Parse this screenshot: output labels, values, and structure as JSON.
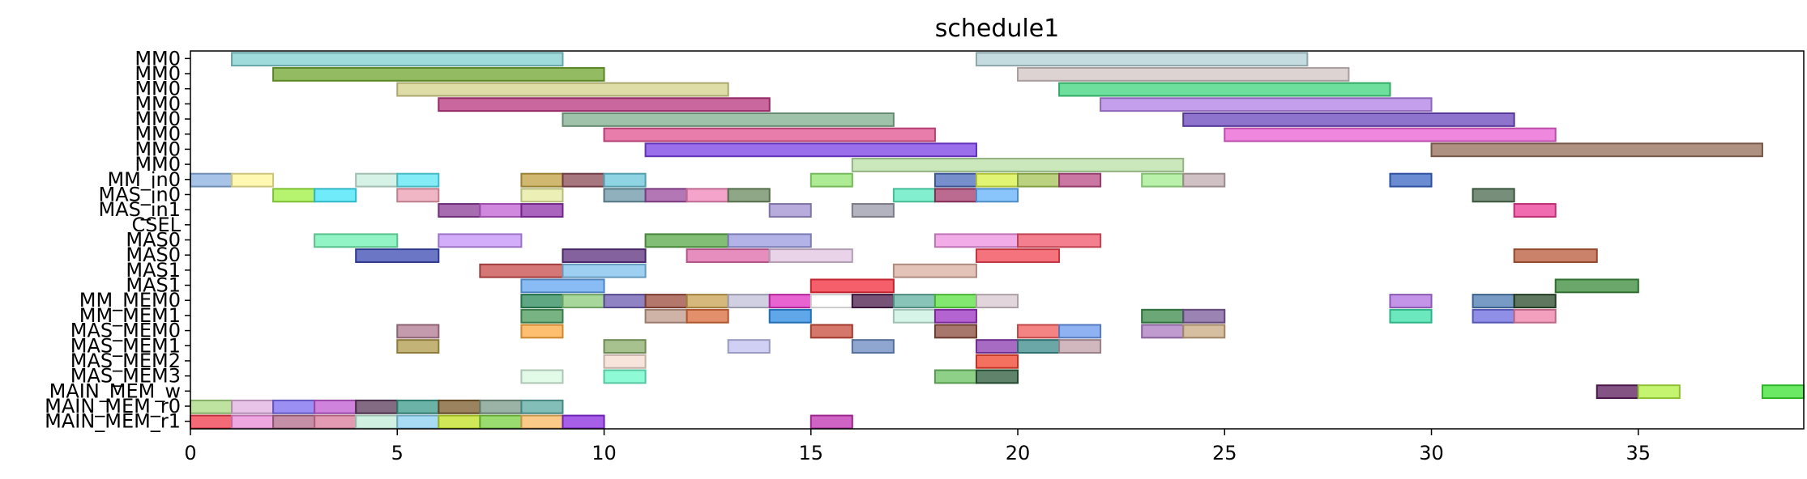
{
  "chart_data": {
    "type": "gantt",
    "title": "schedule1",
    "xlabel": "",
    "ylabel": "",
    "xlim": [
      0,
      39
    ],
    "xticks": [
      0,
      5,
      10,
      15,
      20,
      25,
      30,
      35
    ],
    "grid": false,
    "lanes": [
      "MM0",
      "MM0",
      "MM0",
      "MM0",
      "MM0",
      "MM0",
      "MM0",
      "MM0",
      "MM_in0",
      "MAS_in0",
      "MAS_in1",
      "CSEL",
      "MAS0",
      "MAS0",
      "MAS1",
      "MAS1",
      "MM_MEM0",
      "MM_MEM1",
      "MAS_MEM0",
      "MAS_MEM1",
      "MAS_MEM2",
      "MAS_MEM3",
      "MAIN_MEM_w",
      "MAIN_MEM_r0",
      "MAIN_MEM_r1"
    ],
    "bars": [
      {
        "lane": 0,
        "start": 1,
        "end": 9,
        "color": "#80cfcf"
      },
      {
        "lane": 0,
        "start": 19,
        "end": 27,
        "color": "#b0d0d4"
      },
      {
        "lane": 1,
        "start": 2,
        "end": 10,
        "color": "#6fa62e"
      },
      {
        "lane": 1,
        "start": 20,
        "end": 28,
        "color": "#d3c4c4"
      },
      {
        "lane": 2,
        "start": 5,
        "end": 13,
        "color": "#d4d28a"
      },
      {
        "lane": 2,
        "start": 21,
        "end": 29,
        "color": "#3fd47e"
      },
      {
        "lane": 3,
        "start": 6,
        "end": 14,
        "color": "#b8347e"
      },
      {
        "lane": 3,
        "start": 22,
        "end": 30,
        "color": "#b07fe6"
      },
      {
        "lane": 4,
        "start": 9,
        "end": 17,
        "color": "#7fae8e"
      },
      {
        "lane": 4,
        "start": 24,
        "end": 32,
        "color": "#6a46be"
      },
      {
        "lane": 5,
        "start": 10,
        "end": 18,
        "color": "#e0508e"
      },
      {
        "lane": 5,
        "start": 25,
        "end": 33,
        "color": "#ea5fd4"
      },
      {
        "lane": 6,
        "start": 11,
        "end": 19,
        "color": "#7a3ee6"
      },
      {
        "lane": 6,
        "start": 30,
        "end": 38,
        "color": "#946c58"
      },
      {
        "lane": 7,
        "start": 16,
        "end": 24,
        "color": "#b8e0a4"
      },
      {
        "lane": 8,
        "start": 0,
        "end": 1,
        "color": "#8ab0e0"
      },
      {
        "lane": 8,
        "start": 1,
        "end": 2,
        "color": "#fff59a"
      },
      {
        "lane": 8,
        "start": 4,
        "end": 5,
        "color": "#c8ecdc"
      },
      {
        "lane": 8,
        "start": 5,
        "end": 6,
        "color": "#5ae6f4"
      },
      {
        "lane": 8,
        "start": 8,
        "end": 9,
        "color": "#c0a040"
      },
      {
        "lane": 8,
        "start": 9,
        "end": 10,
        "color": "#8a4a56"
      },
      {
        "lane": 8,
        "start": 10,
        "end": 11,
        "color": "#6ac6d8"
      },
      {
        "lane": 8,
        "start": 15,
        "end": 16,
        "color": "#92e670"
      },
      {
        "lane": 8,
        "start": 18,
        "end": 19,
        "color": "#4a6ab8"
      },
      {
        "lane": 8,
        "start": 19,
        "end": 20,
        "color": "#d8f046"
      },
      {
        "lane": 8,
        "start": 20,
        "end": 21,
        "color": "#a4c456"
      },
      {
        "lane": 8,
        "start": 21,
        "end": 22,
        "color": "#b84a86"
      },
      {
        "lane": 8,
        "start": 23,
        "end": 24,
        "color": "#a2ec8e"
      },
      {
        "lane": 8,
        "start": 24,
        "end": 25,
        "color": "#c0aeb0"
      },
      {
        "lane": 8,
        "start": 29,
        "end": 30,
        "color": "#3a64c4"
      },
      {
        "lane": 9,
        "start": 2,
        "end": 3,
        "color": "#9ef040"
      },
      {
        "lane": 9,
        "start": 3,
        "end": 4,
        "color": "#40e4f8"
      },
      {
        "lane": 9,
        "start": 5,
        "end": 6,
        "color": "#ec9eb2"
      },
      {
        "lane": 9,
        "start": 8,
        "end": 9,
        "color": "#e6ea9e"
      },
      {
        "lane": 9,
        "start": 10,
        "end": 11,
        "color": "#6a96a6"
      },
      {
        "lane": 9,
        "start": 11,
        "end": 12,
        "color": "#9a4a9e"
      },
      {
        "lane": 9,
        "start": 12,
        "end": 13,
        "color": "#f086b8"
      },
      {
        "lane": 9,
        "start": 13,
        "end": 14,
        "color": "#6a8a5e"
      },
      {
        "lane": 9,
        "start": 17,
        "end": 18,
        "color": "#58eabe"
      },
      {
        "lane": 9,
        "start": 18,
        "end": 19,
        "color": "#a43a6a"
      },
      {
        "lane": 9,
        "start": 19,
        "end": 20,
        "color": "#62b2f8"
      },
      {
        "lane": 9,
        "start": 31,
        "end": 32,
        "color": "#4a6a4e"
      },
      {
        "lane": 10,
        "start": 6,
        "end": 7,
        "color": "#8a3a96"
      },
      {
        "lane": 10,
        "start": 7,
        "end": 8,
        "color": "#c060d4"
      },
      {
        "lane": 10,
        "start": 8,
        "end": 9,
        "color": "#8e30a8"
      },
      {
        "lane": 10,
        "start": 14,
        "end": 15,
        "color": "#a090d0"
      },
      {
        "lane": 10,
        "start": 16,
        "end": 17,
        "color": "#9a9aaa"
      },
      {
        "lane": 10,
        "start": 32,
        "end": 33,
        "color": "#ec3a96"
      },
      {
        "lane": 12,
        "start": 3,
        "end": 5,
        "color": "#6ef0b0"
      },
      {
        "lane": 12,
        "start": 6,
        "end": 8,
        "color": "#c490f8"
      },
      {
        "lane": 12,
        "start": 11,
        "end": 13,
        "color": "#5aa84a"
      },
      {
        "lane": 12,
        "start": 13,
        "end": 15,
        "color": "#9a9ae0"
      },
      {
        "lane": 12,
        "start": 18,
        "end": 20,
        "color": "#ee90e0"
      },
      {
        "lane": 12,
        "start": 20,
        "end": 22,
        "color": "#f05468"
      },
      {
        "lane": 13,
        "start": 4,
        "end": 6,
        "color": "#3a4ab0"
      },
      {
        "lane": 13,
        "start": 9,
        "end": 11,
        "color": "#5a2e7e"
      },
      {
        "lane": 13,
        "start": 12,
        "end": 14,
        "color": "#de68a8"
      },
      {
        "lane": 13,
        "start": 14,
        "end": 16,
        "color": "#e0c4e0"
      },
      {
        "lane": 13,
        "start": 19,
        "end": 21,
        "color": "#f04450"
      },
      {
        "lane": 13,
        "start": 32,
        "end": 34,
        "color": "#b85a38"
      },
      {
        "lane": 14,
        "start": 7,
        "end": 9,
        "color": "#c84a4a"
      },
      {
        "lane": 14,
        "start": 9,
        "end": 11,
        "color": "#7ec0ec"
      },
      {
        "lane": 14,
        "start": 17,
        "end": 19,
        "color": "#daaea0"
      },
      {
        "lane": 15,
        "start": 8,
        "end": 10,
        "color": "#62a6f0"
      },
      {
        "lane": 15,
        "start": 15,
        "end": 17,
        "color": "#f02a3a"
      },
      {
        "lane": 15,
        "start": 33,
        "end": 35,
        "color": "#3a8a3a"
      },
      {
        "lane": 16,
        "start": 8,
        "end": 9,
        "color": "#2a8a5a"
      },
      {
        "lane": 16,
        "start": 9,
        "end": 10,
        "color": "#8aca7a"
      },
      {
        "lane": 16,
        "start": 10,
        "end": 11,
        "color": "#6a5ab0"
      },
      {
        "lane": 16,
        "start": 11,
        "end": 12,
        "color": "#9a4a3a"
      },
      {
        "lane": 16,
        "start": 12,
        "end": 13,
        "color": "#caa050"
      },
      {
        "lane": 16,
        "start": 13,
        "end": 14,
        "color": "#c0c0d8"
      },
      {
        "lane": 16,
        "start": 14,
        "end": 15,
        "color": "#e030c0"
      },
      {
        "lane": 16,
        "start": 15,
        "end": 16,
        "color": "#ffffff"
      },
      {
        "lane": 16,
        "start": 16,
        "end": 17,
        "color": "#4a1a4a"
      },
      {
        "lane": 16,
        "start": 17,
        "end": 18,
        "color": "#60b0a0"
      },
      {
        "lane": 16,
        "start": 18,
        "end": 19,
        "color": "#5ae040"
      },
      {
        "lane": 16,
        "start": 19,
        "end": 20,
        "color": "#d8c8d0"
      },
      {
        "lane": 16,
        "start": 29,
        "end": 30,
        "color": "#b070e0"
      },
      {
        "lane": 16,
        "start": 31,
        "end": 32,
        "color": "#4a7ab0"
      },
      {
        "lane": 16,
        "start": 32,
        "end": 33,
        "color": "#2a4a2a"
      },
      {
        "lane": 17,
        "start": 8,
        "end": 9,
        "color": "#4a9a5a"
      },
      {
        "lane": 17,
        "start": 11,
        "end": 12,
        "color": "#c09a8a"
      },
      {
        "lane": 17,
        "start": 12,
        "end": 13,
        "color": "#da6a3a"
      },
      {
        "lane": 17,
        "start": 14,
        "end": 15,
        "color": "#2a8ae0"
      },
      {
        "lane": 17,
        "start": 17,
        "end": 18,
        "color": "#c8f0e0"
      },
      {
        "lane": 17,
        "start": 18,
        "end": 19,
        "color": "#9a30c0"
      },
      {
        "lane": 17,
        "start": 23,
        "end": 24,
        "color": "#3a8a4a"
      },
      {
        "lane": 17,
        "start": 24,
        "end": 25,
        "color": "#7a5a9a"
      },
      {
        "lane": 17,
        "start": 29,
        "end": 30,
        "color": "#3ae0a8"
      },
      {
        "lane": 17,
        "start": 31,
        "end": 32,
        "color": "#6a6ae0"
      },
      {
        "lane": 17,
        "start": 32,
        "end": 33,
        "color": "#ee80a8"
      },
      {
        "lane": 18,
        "start": 5,
        "end": 6,
        "color": "#b07a90"
      },
      {
        "lane": 18,
        "start": 8,
        "end": 9,
        "color": "#ffaa40"
      },
      {
        "lane": 18,
        "start": 15,
        "end": 16,
        "color": "#c84a3a"
      },
      {
        "lane": 18,
        "start": 18,
        "end": 19,
        "color": "#8a4a3a"
      },
      {
        "lane": 18,
        "start": 20,
        "end": 21,
        "color": "#f05a5a"
      },
      {
        "lane": 18,
        "start": 21,
        "end": 22,
        "color": "#6a9aee"
      },
      {
        "lane": 18,
        "start": 23,
        "end": 24,
        "color": "#aa7ac0"
      },
      {
        "lane": 18,
        "start": 24,
        "end": 25,
        "color": "#c8a880"
      },
      {
        "lane": 19,
        "start": 5,
        "end": 6,
        "color": "#b09a4a"
      },
      {
        "lane": 19,
        "start": 10,
        "end": 11,
        "color": "#8aae6a"
      },
      {
        "lane": 19,
        "start": 13,
        "end": 14,
        "color": "#c0c0f0"
      },
      {
        "lane": 19,
        "start": 16,
        "end": 17,
        "color": "#6a8ac0"
      },
      {
        "lane": 19,
        "start": 19,
        "end": 20,
        "color": "#8a3ab0"
      },
      {
        "lane": 19,
        "start": 20,
        "end": 21,
        "color": "#3a8a8a"
      },
      {
        "lane": 19,
        "start": 21,
        "end": 22,
        "color": "#c0a0a8"
      },
      {
        "lane": 20,
        "start": 10,
        "end": 11,
        "color": "#f4dcd0"
      },
      {
        "lane": 20,
        "start": 19,
        "end": 20,
        "color": "#f0402a"
      },
      {
        "lane": 21,
        "start": 8,
        "end": 9,
        "color": "#d8f8e0"
      },
      {
        "lane": 21,
        "start": 10,
        "end": 11,
        "color": "#6af8c8"
      },
      {
        "lane": 21,
        "start": 18,
        "end": 19,
        "color": "#6ac060"
      },
      {
        "lane": 21,
        "start": 19,
        "end": 20,
        "color": "#2a5a3a"
      },
      {
        "lane": 22,
        "start": 34,
        "end": 35,
        "color": "#5a1a5a"
      },
      {
        "lane": 22,
        "start": 35,
        "end": 36,
        "color": "#b0f040"
      },
      {
        "lane": 22,
        "start": 38,
        "end": 39,
        "color": "#3ae030"
      },
      {
        "lane": 23,
        "start": 0,
        "end": 1,
        "color": "#a8d880"
      },
      {
        "lane": 23,
        "start": 1,
        "end": 2,
        "color": "#e0b0e0"
      },
      {
        "lane": 23,
        "start": 2,
        "end": 3,
        "color": "#7a6af0"
      },
      {
        "lane": 23,
        "start": 3,
        "end": 4,
        "color": "#c05ad0"
      },
      {
        "lane": 23,
        "start": 4,
        "end": 5,
        "color": "#5a3a5a"
      },
      {
        "lane": 23,
        "start": 5,
        "end": 6,
        "color": "#3a9a8a"
      },
      {
        "lane": 23,
        "start": 6,
        "end": 7,
        "color": "#7a5a2a"
      },
      {
        "lane": 23,
        "start": 7,
        "end": 8,
        "color": "#7a9a8a"
      },
      {
        "lane": 23,
        "start": 8,
        "end": 9,
        "color": "#5aa8a0"
      },
      {
        "lane": 24,
        "start": 0,
        "end": 1,
        "color": "#f03a4a"
      },
      {
        "lane": 24,
        "start": 1,
        "end": 2,
        "color": "#ea8ad8"
      },
      {
        "lane": 24,
        "start": 2,
        "end": 3,
        "color": "#b06a8a"
      },
      {
        "lane": 24,
        "start": 3,
        "end": 4,
        "color": "#d87a9a"
      },
      {
        "lane": 24,
        "start": 4,
        "end": 5,
        "color": "#c0ecd8"
      },
      {
        "lane": 24,
        "start": 5,
        "end": 6,
        "color": "#8ad0f0"
      },
      {
        "lane": 24,
        "start": 6,
        "end": 7,
        "color": "#c0e020"
      },
      {
        "lane": 24,
        "start": 7,
        "end": 8,
        "color": "#7ad040"
      },
      {
        "lane": 24,
        "start": 8,
        "end": 9,
        "color": "#f8b860"
      },
      {
        "lane": 24,
        "start": 9,
        "end": 10,
        "color": "#8a2ae0"
      },
      {
        "lane": 24,
        "start": 15,
        "end": 16,
        "color": "#c030b0"
      }
    ]
  }
}
